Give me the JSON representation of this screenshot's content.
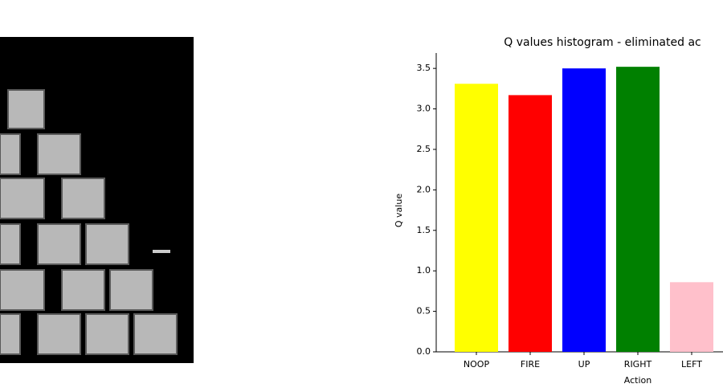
{
  "chart_data": {
    "type": "bar",
    "title": "Q values histogram - eliminated ac",
    "x_label": "Action",
    "y_label": "Q value",
    "categories": [
      "NOOP",
      "FIRE",
      "UP",
      "RIGHT",
      "LEFT"
    ],
    "values": [
      3.31,
      3.17,
      3.5,
      3.52,
      0.86
    ],
    "colors": [
      "#ffff00",
      "#ff0000",
      "#0000ff",
      "#008000",
      "#ffc0cb"
    ],
    "ylim": [
      0,
      3.69
    ],
    "yticks": [
      {
        "value": 0,
        "label": "0.0"
      },
      0.5,
      {
        "value": 1,
        "label": "1.0"
      },
      1.5,
      {
        "value": 2,
        "label": "2.0"
      },
      2.5,
      {
        "value": 3,
        "label": "3.0"
      },
      3.5
    ]
  }
}
